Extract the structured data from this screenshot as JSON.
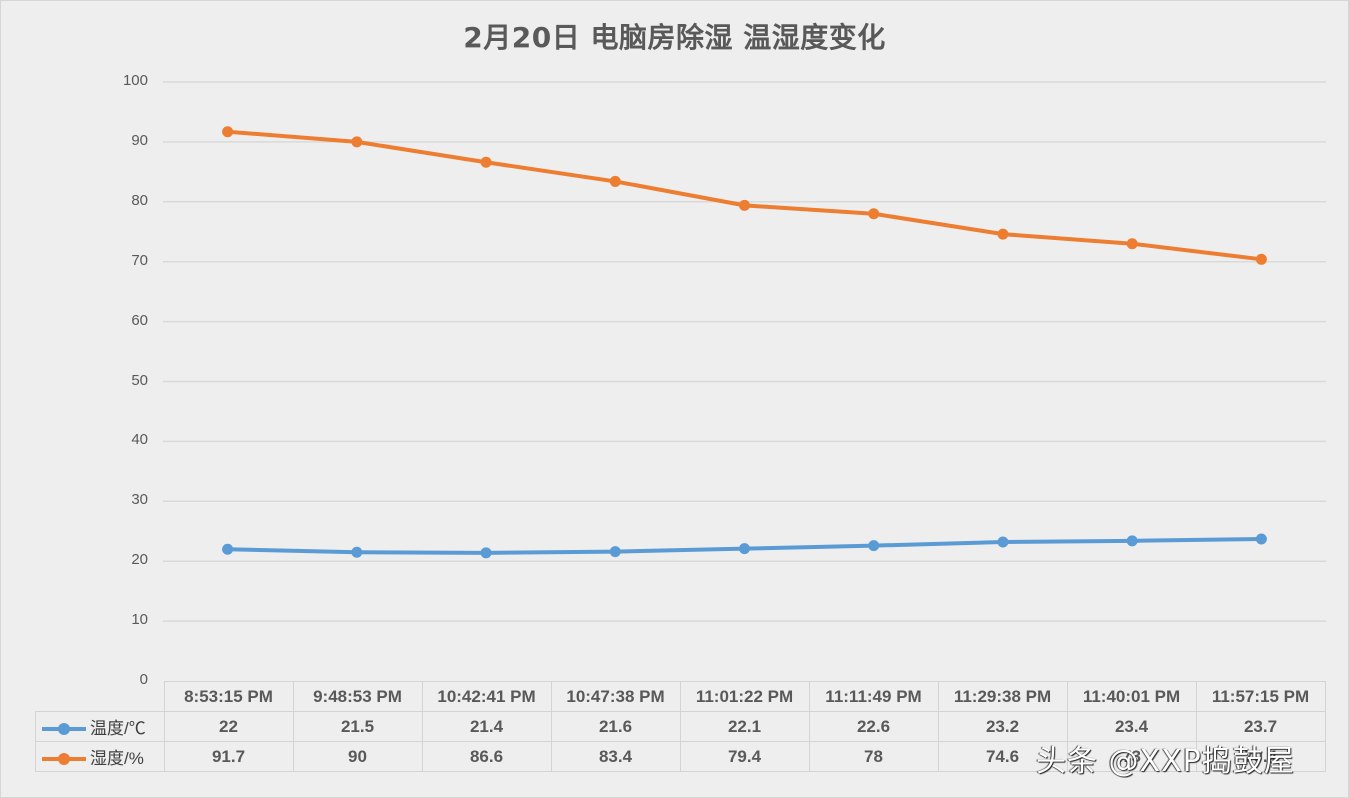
{
  "title": "2月20日 电脑房除湿 温湿度变化",
  "watermark": "头条 @XXP捣鼓屋",
  "colors": {
    "temperature": "#5b9bd5",
    "humidity": "#ed7d31",
    "grid": "#d9d9d9",
    "text": "#595959",
    "background": "#eeeeee"
  },
  "y_axis": {
    "ticks": [
      "100",
      "90",
      "80",
      "70",
      "60",
      "50",
      "40",
      "30",
      "20",
      "10",
      "0"
    ]
  },
  "table": {
    "headers": [
      "8:53:15 PM",
      "9:48:53 PM",
      "10:42:41 PM",
      "10:47:38 PM",
      "11:01:22 PM",
      "11:11:49 PM",
      "11:29:38 PM",
      "11:40:01 PM",
      "11:57:15 PM"
    ],
    "rows": [
      {
        "label": "温度/℃",
        "values": [
          "22",
          "21.5",
          "21.4",
          "21.6",
          "22.1",
          "22.6",
          "23.2",
          "23.4",
          "23.7"
        ]
      },
      {
        "label": "湿度/%",
        "values": [
          "91.7",
          "90",
          "86.6",
          "83.4",
          "79.4",
          "78",
          "74.6",
          "73",
          "70.4"
        ]
      }
    ]
  },
  "chart_data": {
    "type": "line",
    "title": "2月20日 电脑房除湿 温湿度变化",
    "xlabel": "",
    "ylabel": "",
    "ylim": [
      0,
      100
    ],
    "yticks": [
      0,
      10,
      20,
      30,
      40,
      50,
      60,
      70,
      80,
      90,
      100
    ],
    "grid": true,
    "legend_position": "data-table",
    "categories": [
      "8:53:15 PM",
      "9:48:53 PM",
      "10:42:41 PM",
      "10:47:38 PM",
      "11:01:22 PM",
      "11:11:49 PM",
      "11:29:38 PM",
      "11:40:01 PM",
      "11:57:15 PM"
    ],
    "series": [
      {
        "name": "温度/℃",
        "color": "#5b9bd5",
        "values": [
          22,
          21.5,
          21.4,
          21.6,
          22.1,
          22.6,
          23.2,
          23.4,
          23.7
        ]
      },
      {
        "name": "湿度/%",
        "color": "#ed7d31",
        "values": [
          91.7,
          90,
          86.6,
          83.4,
          79.4,
          78,
          74.6,
          73,
          70.4
        ]
      }
    ]
  }
}
